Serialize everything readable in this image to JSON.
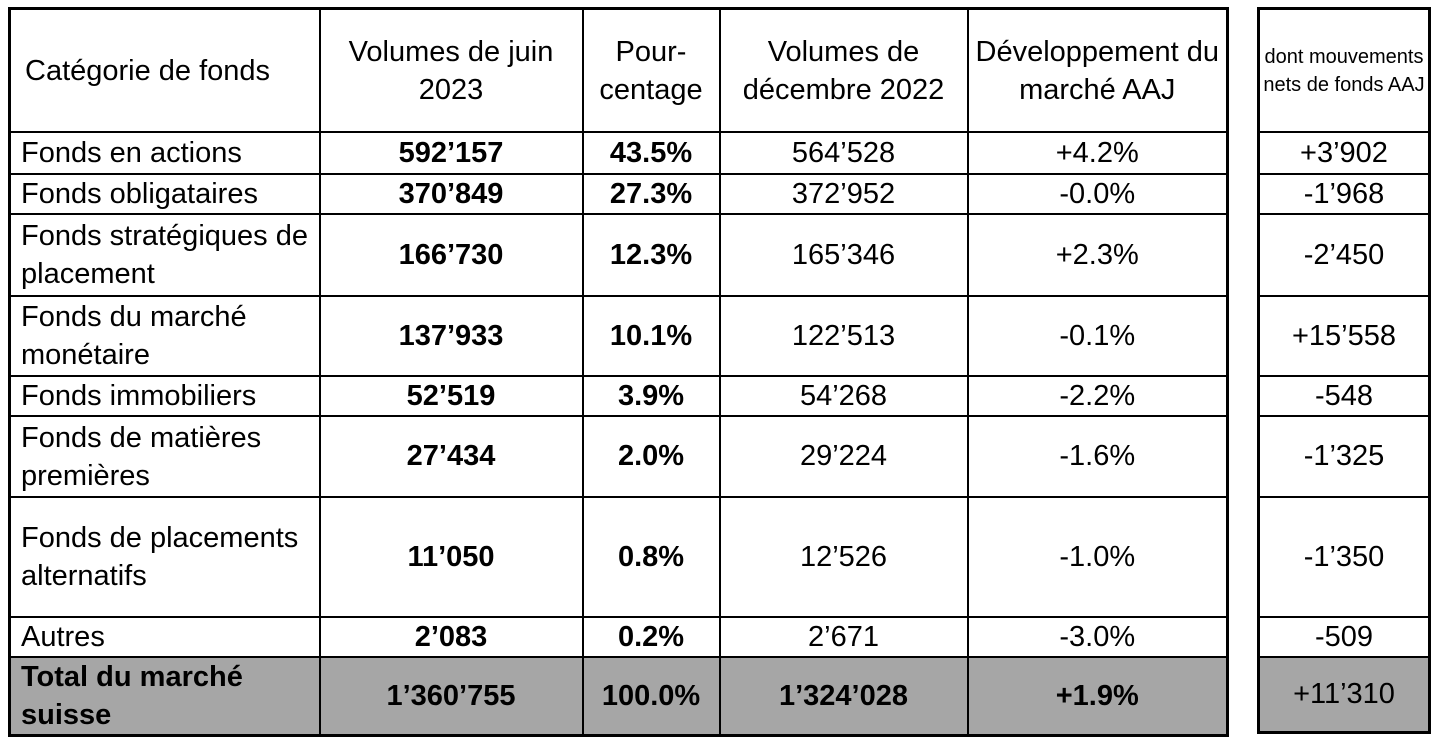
{
  "headers": {
    "category": "Catégorie de fonds",
    "june_volume": "Volumes de juin 2023",
    "percentage": "Pour-centage",
    "dec_volume": "Volumes de décembre 2022",
    "market_dev": "Développement du marché AAJ",
    "net_flows": "dont mouvements nets de fonds AAJ"
  },
  "rows": [
    {
      "category": "Fonds en actions",
      "june_volume": "592’157",
      "percentage": "43.5%",
      "dec_volume": "564’528",
      "market_dev": "+4.2%",
      "net_flows": "+3’902"
    },
    {
      "category": "Fonds obligataires",
      "june_volume": "370’849",
      "percentage": "27.3%",
      "dec_volume": "372’952",
      "market_dev": "-0.0%",
      "net_flows": "-1’968"
    },
    {
      "category": "Fonds stratégiques de placement",
      "june_volume": "166’730",
      "percentage": "12.3%",
      "dec_volume": "165’346",
      "market_dev": "+2.3%",
      "net_flows": "-2’450"
    },
    {
      "category": "Fonds du marché monétaire",
      "june_volume": "137’933",
      "percentage": "10.1%",
      "dec_volume": "122’513",
      "market_dev": "-0.1%",
      "net_flows": "+15’558"
    },
    {
      "category": "Fonds immobiliers",
      "june_volume": "52’519",
      "percentage": "3.9%",
      "dec_volume": "54’268",
      "market_dev": "-2.2%",
      "net_flows": "-548"
    },
    {
      "category": "Fonds de matières premières",
      "june_volume": "27’434",
      "percentage": "2.0%",
      "dec_volume": "29’224",
      "market_dev": "-1.6%",
      "net_flows": "-1’325"
    },
    {
      "category": "Fonds de placements alternatifs",
      "june_volume": "11’050",
      "percentage": "0.8%",
      "dec_volume": "12’526",
      "market_dev": "-1.0%",
      "net_flows": "-1’350"
    },
    {
      "category": "Autres",
      "june_volume": "2’083",
      "percentage": "0.2%",
      "dec_volume": "2’671",
      "market_dev": "-3.0%",
      "net_flows": "-509"
    }
  ],
  "total": {
    "category": "Total du marché suisse",
    "june_volume": "1’360’755",
    "percentage": "100.0%",
    "dec_volume": "1’324’028",
    "market_dev": "+1.9%",
    "net_flows": "+11’310"
  },
  "colors": {
    "total_bg": "#a6a6a6",
    "border": "#000000"
  }
}
